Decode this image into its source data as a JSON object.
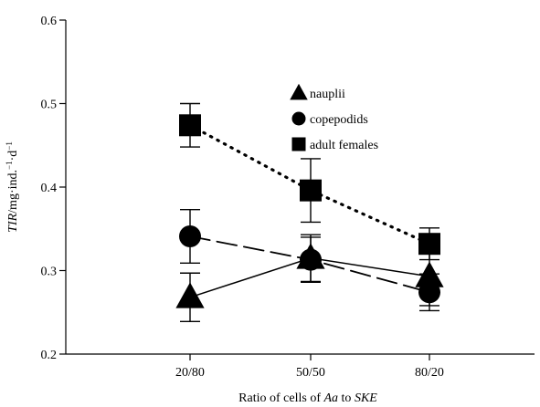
{
  "chart_data": {
    "type": "line",
    "categories": [
      "20/80",
      "50/50",
      "80/20"
    ],
    "xlabel": {
      "prefix": "Ratio of cells of ",
      "a": "Aa",
      "mid": " to ",
      "b": "SKE"
    },
    "ylabel": {
      "var": "TIR",
      "unit": "/mg·ind.",
      "exp1": "−1",
      "mid": "·d",
      "exp2": "−1"
    },
    "ylim": [
      0.2,
      0.6
    ],
    "yticks": [
      "0.2",
      "0.3",
      "0.4",
      "0.5",
      "0.6"
    ],
    "ytick_values": [
      0.2,
      0.3,
      0.4,
      0.5,
      0.6
    ],
    "grid": false,
    "legend_position": "top-center",
    "series": [
      {
        "name": "nauplii",
        "marker": "triangle",
        "line": "solid",
        "values": [
          0.268,
          0.315,
          0.293
        ],
        "errors": [
          0.029,
          0.028,
          0.035
        ]
      },
      {
        "name": "copepodids",
        "marker": "circle",
        "line": "dashed",
        "values": [
          0.341,
          0.313,
          0.274
        ],
        "errors": [
          0.032,
          0.027,
          0.022
        ]
      },
      {
        "name": "adult females",
        "marker": "square",
        "line": "dotted",
        "values": [
          0.474,
          0.396,
          0.332
        ],
        "errors": [
          0.026,
          0.038,
          0.019
        ]
      }
    ],
    "color": "#000000"
  }
}
